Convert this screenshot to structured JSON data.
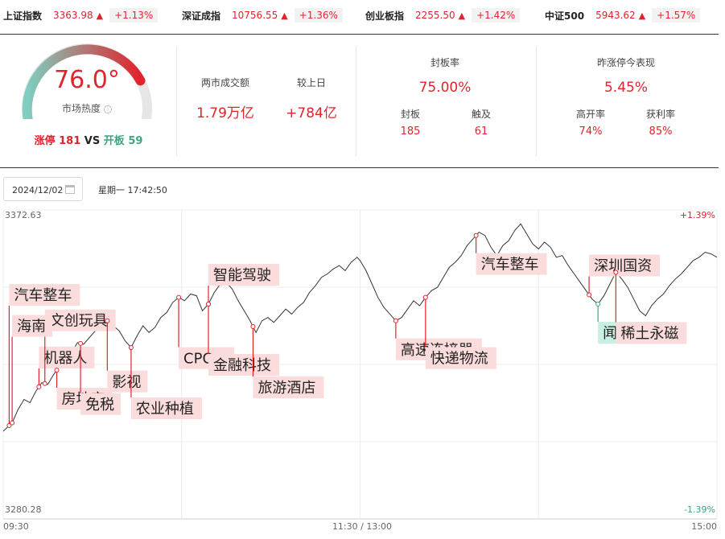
{
  "indices": [
    {
      "name": "上证指数",
      "price": "3363.98",
      "arrow": "▲",
      "pct": "+1.13%"
    },
    {
      "name": "深证成指",
      "price": "10756.55",
      "arrow": "▲",
      "pct": "+1.36%"
    },
    {
      "name": "创业板指",
      "price": "2255.50",
      "arrow": "▲",
      "pct": "+1.42%"
    },
    {
      "name": "中证500",
      "price": "5943.62",
      "arrow": "▲",
      "pct": "+1.57%"
    }
  ],
  "heat": {
    "value": "76.0°",
    "label": "市场热度",
    "info_icon": "info-circle-icon",
    "level": 0.76,
    "limit_up_label": "涨停",
    "limit_up_count": "181",
    "vs": "VS",
    "broken_label": "开板",
    "broken_count": "59",
    "colors": {
      "cold": "#7ecfc0",
      "hot": "#e0242b",
      "track": "#e6e6e6"
    }
  },
  "turnover": {
    "label": "两市成交额",
    "value": "1.79万亿",
    "change_label": "较上日",
    "change_value": "+784亿"
  },
  "seal": {
    "title": "封板率",
    "rate": "75.00%",
    "sealed_label": "封板",
    "sealed": "185",
    "touched_label": "触及",
    "touched": "61"
  },
  "yesterday": {
    "title": "昨涨停今表现",
    "value": "5.45%",
    "high_open_label": "高开率",
    "high_open": "74%",
    "profit_label": "获利率",
    "profit": "85%"
  },
  "date": {
    "value": "2024/12/02",
    "calendar_icon": "calendar-icon",
    "weekday_time": "星期一 17:42:50"
  },
  "chart_data": {
    "type": "line",
    "y_top": "3372.63",
    "y_bottom": "3280.28",
    "pct_top": "+1.39%",
    "pct_bottom": "-1.39%",
    "ylim": [
      3280.28,
      3372.63
    ],
    "x_labels": [
      "09:30",
      "11:30 / 13:00",
      "15:00"
    ],
    "minutes_total": 240,
    "grid": true,
    "series": [
      {
        "values": [
          [
            0,
            3306.5
          ],
          [
            3,
            3309.0
          ],
          [
            5,
            3313.0
          ],
          [
            7,
            3316.0
          ],
          [
            9,
            3315.0
          ],
          [
            11,
            3318.5
          ],
          [
            13,
            3321.0
          ],
          [
            15,
            3320.5
          ],
          [
            17,
            3323.5
          ],
          [
            19,
            3326.0
          ],
          [
            21,
            3328.5
          ],
          [
            23,
            3330.0
          ],
          [
            25,
            3333.0
          ],
          [
            27,
            3332.5
          ],
          [
            29,
            3334.5
          ],
          [
            31,
            3336.5
          ],
          [
            33,
            3337.0
          ],
          [
            35,
            3339.5
          ],
          [
            37,
            3338.0
          ],
          [
            39,
            3336.5
          ],
          [
            41,
            3333.5
          ],
          [
            43,
            3331.5
          ],
          [
            45,
            3335.0
          ],
          [
            47,
            3338.0
          ],
          [
            49,
            3336.0
          ],
          [
            51,
            3337.5
          ],
          [
            53,
            3340.5
          ],
          [
            55,
            3342.0
          ],
          [
            57,
            3345.0
          ],
          [
            59,
            3346.5
          ],
          [
            61,
            3345.5
          ],
          [
            63,
            3347.5
          ],
          [
            65,
            3347.0
          ],
          [
            67,
            3342.5
          ],
          [
            69,
            3344.5
          ],
          [
            71,
            3348.0
          ],
          [
            73,
            3350.5
          ],
          [
            75,
            3351.0
          ],
          [
            77,
            3349.0
          ],
          [
            79,
            3345.5
          ],
          [
            81,
            3342.5
          ],
          [
            83,
            3339.5
          ],
          [
            85,
            3336.0
          ],
          [
            87,
            3339.5
          ],
          [
            89,
            3340.5
          ],
          [
            91,
            3339.0
          ],
          [
            93,
            3341.0
          ],
          [
            95,
            3343.0
          ],
          [
            97,
            3341.5
          ],
          [
            99,
            3343.5
          ],
          [
            101,
            3345.0
          ],
          [
            103,
            3348.0
          ],
          [
            105,
            3350.0
          ],
          [
            107,
            3352.5
          ],
          [
            109,
            3353.5
          ],
          [
            111,
            3355.0
          ],
          [
            113,
            3356.0
          ],
          [
            115,
            3354.5
          ],
          [
            117,
            3357.0
          ],
          [
            119,
            3358.5
          ],
          [
            120,
            3357.5
          ],
          [
            122,
            3354.5
          ],
          [
            124,
            3350.5
          ],
          [
            126,
            3346.5
          ],
          [
            128,
            3343.5
          ],
          [
            130,
            3341.5
          ],
          [
            132,
            3339.5
          ],
          [
            134,
            3340.5
          ],
          [
            136,
            3343.0
          ],
          [
            138,
            3345.5
          ],
          [
            140,
            3344.0
          ],
          [
            142,
            3346.5
          ],
          [
            144,
            3348.5
          ],
          [
            146,
            3349.5
          ],
          [
            148,
            3352.5
          ],
          [
            150,
            3355.5
          ],
          [
            152,
            3357.0
          ],
          [
            154,
            3359.0
          ],
          [
            156,
            3362.0
          ],
          [
            158,
            3364.0
          ],
          [
            160,
            3366.0
          ],
          [
            162,
            3365.0
          ],
          [
            164,
            3361.5
          ],
          [
            166,
            3359.0
          ],
          [
            168,
            3362.0
          ],
          [
            170,
            3363.5
          ],
          [
            172,
            3366.5
          ],
          [
            174,
            3368.5
          ],
          [
            176,
            3365.5
          ],
          [
            178,
            3362.5
          ],
          [
            180,
            3361.0
          ],
          [
            182,
            3363.0
          ],
          [
            184,
            3361.5
          ],
          [
            186,
            3358.5
          ],
          [
            188,
            3359.0
          ],
          [
            190,
            3356.0
          ],
          [
            192,
            3353.5
          ],
          [
            194,
            3351.0
          ],
          [
            196,
            3348.5
          ],
          [
            198,
            3346.0
          ],
          [
            200,
            3344.5
          ],
          [
            202,
            3347.0
          ],
          [
            204,
            3350.5
          ],
          [
            206,
            3354.0
          ],
          [
            208,
            3352.0
          ],
          [
            210,
            3349.5
          ],
          [
            212,
            3346.0
          ],
          [
            214,
            3342.5
          ],
          [
            216,
            3341.0
          ],
          [
            218,
            3344.0
          ],
          [
            220,
            3346.0
          ],
          [
            222,
            3347.5
          ],
          [
            224,
            3350.0
          ],
          [
            226,
            3352.0
          ],
          [
            228,
            3353.5
          ],
          [
            230,
            3355.5
          ],
          [
            232,
            3357.5
          ],
          [
            234,
            3358.5
          ],
          [
            236,
            3360.0
          ],
          [
            238,
            3359.5
          ],
          [
            240,
            3358.5
          ]
        ]
      }
    ],
    "annotations": [
      {
        "label": "机器人",
        "t": 12,
        "dir": "up",
        "color": "#e0242b"
      },
      {
        "label": "文创玩具",
        "t": 14,
        "dir": "up",
        "color": "#e0242b"
      },
      {
        "label": "海南",
        "t": 3,
        "dir": "up",
        "color": "#e0242b"
      },
      {
        "label": "汽车整车",
        "t": 2,
        "dir": "up",
        "color": "#e0242b"
      },
      {
        "label": "房地产",
        "t": 18,
        "dir": "down",
        "color": "#e0242b"
      },
      {
        "label": "免税",
        "t": 26,
        "dir": "down",
        "color": "#e0242b"
      },
      {
        "label": "影视",
        "t": 35,
        "dir": "down",
        "color": "#e0242b"
      },
      {
        "label": "农业种植",
        "t": 43,
        "dir": "down",
        "color": "#e0242b"
      },
      {
        "label": "CPO",
        "t": 59,
        "dir": "down",
        "color": "#e0242b"
      },
      {
        "label": "智能驾驶",
        "t": 69,
        "dir": "up",
        "color": "#e0242b"
      },
      {
        "label": "金融科技",
        "t": 69,
        "dir": "down",
        "color": "#e0242b"
      },
      {
        "label": "旅游酒店",
        "t": 84,
        "dir": "down",
        "color": "#e0242b"
      },
      {
        "label": "高速连接器",
        "t": 132,
        "dir": "down",
        "color": "#e0242b"
      },
      {
        "label": "快递物流",
        "t": 142,
        "dir": "down",
        "color": "#e0242b"
      },
      {
        "label": "汽车整车",
        "t": 159,
        "dir": "down",
        "color": "#e0242b"
      },
      {
        "label": "深圳国资",
        "t": 197,
        "dir": "up",
        "color": "#e0242b"
      },
      {
        "label": "闻泰科技",
        "t": 200,
        "dir": "down",
        "color": "#3aa682"
      },
      {
        "label": "稀土永磁",
        "t": 206,
        "dir": "down",
        "color": "#e0242b"
      }
    ]
  }
}
